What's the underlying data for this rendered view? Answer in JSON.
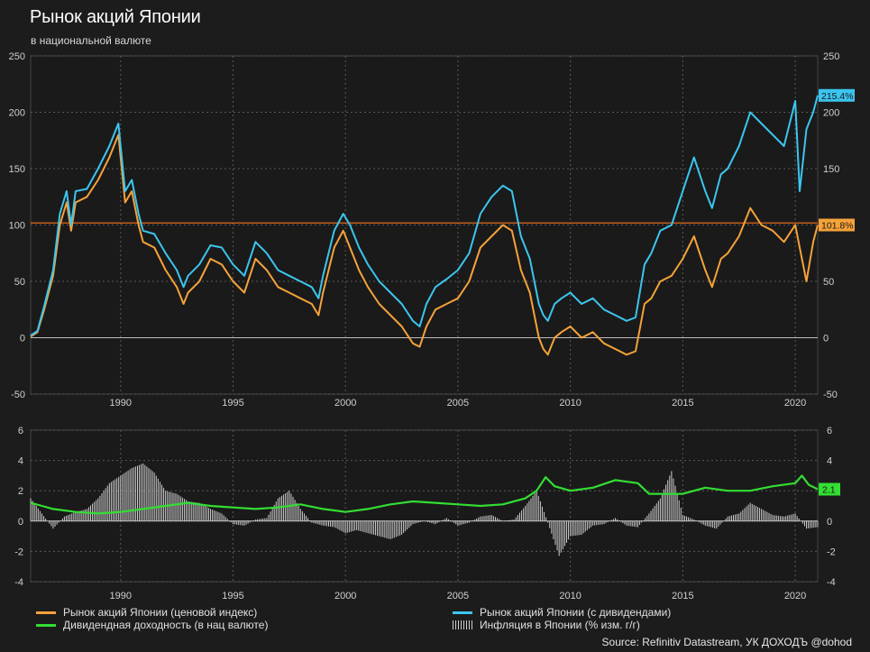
{
  "title": "Рынок акций Японии",
  "subtitle": "в национальной валюте",
  "source": "Source: Refinitiv Datastream, УК ДОХОДЪ @dohod",
  "colors": {
    "background": "#1c1c1c",
    "price": "#f5a23a",
    "total_return": "#3cc5ee",
    "dividend_yield": "#33dd33",
    "inflation": "#d0d0d0",
    "grid": "#5a5a5a",
    "reference_line": "#e06a1a"
  },
  "chart_data": [
    {
      "type": "line",
      "x_ticks": [
        "1990",
        "1995",
        "2000",
        "2005",
        "2010",
        "2015",
        "2020"
      ],
      "y_ticks": [
        "250",
        "200",
        "150",
        "100",
        "50",
        "0",
        "-50"
      ],
      "ylim": [
        -50,
        250
      ],
      "xlim": [
        1986.0,
        2021.0
      ],
      "grid": true,
      "reference_line_y": 101.8,
      "end_labels": {
        "total_return": "215.4%",
        "price": "101.8%"
      },
      "series": [
        {
          "name": "Рынок акций Японии (ценовой индекс)",
          "x": [
            1986.0,
            1986.3,
            1986.6,
            1987.0,
            1987.3,
            1987.6,
            1987.8,
            1988.0,
            1988.5,
            1989.0,
            1989.5,
            1989.9,
            1990.2,
            1990.5,
            1990.8,
            1991.0,
            1991.5,
            1992.0,
            1992.5,
            1992.8,
            1993.0,
            1993.5,
            1994.0,
            1994.5,
            1995.0,
            1995.5,
            1996.0,
            1996.5,
            1997.0,
            1997.5,
            1998.0,
            1998.5,
            1998.8,
            1999.0,
            1999.5,
            1999.9,
            2000.2,
            2000.6,
            2001.0,
            2001.5,
            2002.0,
            2002.5,
            2003.0,
            2003.3,
            2003.6,
            2004.0,
            2004.5,
            2005.0,
            2005.5,
            2006.0,
            2006.5,
            2007.0,
            2007.4,
            2007.8,
            2008.2,
            2008.6,
            2008.8,
            2009.0,
            2009.3,
            2009.6,
            2010.0,
            2010.5,
            2011.0,
            2011.5,
            2012.0,
            2012.5,
            2012.9,
            2013.3,
            2013.6,
            2014.0,
            2014.5,
            2015.0,
            2015.5,
            2016.0,
            2016.3,
            2016.7,
            2017.0,
            2017.5,
            2018.0,
            2018.5,
            2019.0,
            2019.5,
            2020.0,
            2020.2,
            2020.5,
            2020.8,
            2021.0
          ],
          "values": [
            1,
            5,
            25,
            55,
            100,
            120,
            95,
            120,
            125,
            140,
            160,
            180,
            120,
            130,
            100,
            85,
            80,
            60,
            45,
            30,
            40,
            50,
            70,
            65,
            50,
            40,
            70,
            60,
            45,
            40,
            35,
            30,
            20,
            40,
            80,
            95,
            80,
            60,
            45,
            30,
            20,
            10,
            -5,
            -8,
            10,
            25,
            30,
            35,
            50,
            80,
            90,
            100,
            95,
            60,
            40,
            0,
            -10,
            -15,
            0,
            5,
            10,
            0,
            5,
            -5,
            -10,
            -15,
            -12,
            30,
            35,
            50,
            55,
            70,
            90,
            60,
            45,
            70,
            75,
            90,
            115,
            100,
            95,
            85,
            100,
            80,
            50,
            85,
            100
          ]
        },
        {
          "name": "Рынок акций Японии (с дивидендами)",
          "x": [
            1986.0,
            1986.3,
            1986.6,
            1987.0,
            1987.3,
            1987.6,
            1987.8,
            1988.0,
            1988.5,
            1989.0,
            1989.5,
            1989.9,
            1990.2,
            1990.5,
            1990.8,
            1991.0,
            1991.5,
            1992.0,
            1992.5,
            1992.8,
            1993.0,
            1993.5,
            1994.0,
            1994.5,
            1995.0,
            1995.5,
            1996.0,
            1996.5,
            1997.0,
            1997.5,
            1998.0,
            1998.5,
            1998.8,
            1999.0,
            1999.5,
            1999.9,
            2000.2,
            2000.6,
            2001.0,
            2001.5,
            2002.0,
            2002.5,
            2003.0,
            2003.3,
            2003.6,
            2004.0,
            2004.5,
            2005.0,
            2005.5,
            2006.0,
            2006.5,
            2007.0,
            2007.4,
            2007.8,
            2008.2,
            2008.6,
            2008.8,
            2009.0,
            2009.3,
            2009.6,
            2010.0,
            2010.5,
            2011.0,
            2011.5,
            2012.0,
            2012.5,
            2012.9,
            2013.3,
            2013.6,
            2014.0,
            2014.5,
            2015.0,
            2015.5,
            2016.0,
            2016.3,
            2016.7,
            2017.0,
            2017.5,
            2018.0,
            2018.5,
            2019.0,
            2019.5,
            2020.0,
            2020.2,
            2020.5,
            2020.8,
            2021.0
          ],
          "values": [
            2,
            6,
            28,
            60,
            110,
            130,
            100,
            130,
            132,
            150,
            170,
            190,
            130,
            140,
            110,
            95,
            92,
            75,
            60,
            45,
            55,
            65,
            82,
            80,
            65,
            55,
            85,
            75,
            60,
            55,
            50,
            45,
            35,
            55,
            95,
            110,
            100,
            80,
            65,
            50,
            40,
            30,
            15,
            10,
            30,
            45,
            52,
            60,
            75,
            110,
            125,
            135,
            130,
            90,
            70,
            30,
            20,
            15,
            30,
            35,
            40,
            30,
            35,
            25,
            20,
            15,
            18,
            65,
            75,
            95,
            100,
            130,
            160,
            130,
            115,
            145,
            150,
            170,
            200,
            190,
            180,
            170,
            210,
            130,
            185,
            200,
            215
          ]
        }
      ]
    },
    {
      "type": "line",
      "x_ticks": [
        "1990",
        "1995",
        "2000",
        "2005",
        "2010",
        "2015",
        "2020"
      ],
      "y_ticks": [
        "6",
        "4",
        "2",
        "0",
        "-2",
        "-4"
      ],
      "ylim": [
        -4,
        6
      ],
      "grid": true,
      "end_labels": {
        "dividend_yield": "2.1"
      },
      "series": [
        {
          "name": "Дивидендная доходность (в нац валюте)",
          "x": [
            1986.0,
            1986.5,
            1987.0,
            1988.0,
            1989.0,
            1990.0,
            1991.0,
            1992.0,
            1993.0,
            1994.0,
            1995.0,
            1996.0,
            1997.0,
            1998.0,
            1999.0,
            2000.0,
            2001.0,
            2002.0,
            2003.0,
            2004.0,
            2005.0,
            2006.0,
            2007.0,
            2008.0,
            2008.5,
            2008.9,
            2009.3,
            2010.0,
            2011.0,
            2012.0,
            2013.0,
            2013.5,
            2014.0,
            2015.0,
            2016.0,
            2017.0,
            2018.0,
            2019.0,
            2020.0,
            2020.3,
            2020.6,
            2021.0
          ],
          "values": [
            1.2,
            1.0,
            0.8,
            0.6,
            0.5,
            0.6,
            0.8,
            1.0,
            1.2,
            1.0,
            0.9,
            0.8,
            0.9,
            1.1,
            0.8,
            0.6,
            0.8,
            1.1,
            1.3,
            1.2,
            1.1,
            1.0,
            1.1,
            1.5,
            2.0,
            2.9,
            2.3,
            2.0,
            2.2,
            2.7,
            2.5,
            1.8,
            1.8,
            1.8,
            2.2,
            2.0,
            2.0,
            2.3,
            2.5,
            3.0,
            2.4,
            2.1
          ]
        },
        {
          "name": "Инфляция в Японии (% изм. г/г)",
          "x": [
            1986.0,
            1986.5,
            1987.0,
            1987.5,
            1988.0,
            1988.5,
            1989.0,
            1989.5,
            1990.0,
            1990.5,
            1991.0,
            1991.5,
            1992.0,
            1992.5,
            1993.0,
            1993.5,
            1994.0,
            1994.5,
            1995.0,
            1995.5,
            1996.0,
            1996.5,
            1997.0,
            1997.5,
            1998.0,
            1998.5,
            1999.0,
            1999.5,
            2000.0,
            2000.5,
            2001.0,
            2001.5,
            2002.0,
            2002.5,
            2003.0,
            2003.5,
            2004.0,
            2004.5,
            2005.0,
            2005.5,
            2006.0,
            2006.5,
            2007.0,
            2007.5,
            2008.0,
            2008.5,
            2009.0,
            2009.5,
            2010.0,
            2010.5,
            2011.0,
            2011.5,
            2012.0,
            2012.5,
            2013.0,
            2013.5,
            2014.0,
            2014.5,
            2015.0,
            2015.5,
            2016.0,
            2016.5,
            2017.0,
            2017.5,
            2018.0,
            2018.5,
            2019.0,
            2019.5,
            2020.0,
            2020.5,
            2021.0
          ],
          "values": [
            1.5,
            0.5,
            -0.5,
            0.3,
            0.6,
            0.8,
            1.5,
            2.5,
            3.0,
            3.5,
            3.8,
            3.2,
            2.0,
            1.8,
            1.3,
            1.2,
            0.8,
            0.5,
            -0.2,
            -0.3,
            0.1,
            0.2,
            1.5,
            2.0,
            0.8,
            -0.1,
            -0.3,
            -0.4,
            -0.8,
            -0.6,
            -0.8,
            -1.0,
            -1.2,
            -0.9,
            -0.2,
            0.0,
            -0.2,
            0.2,
            -0.3,
            -0.1,
            0.3,
            0.4,
            0.0,
            0.1,
            1.0,
            2.0,
            -0.1,
            -2.3,
            -1.0,
            -0.9,
            -0.3,
            -0.2,
            0.2,
            -0.3,
            -0.4,
            0.5,
            1.5,
            3.3,
            0.4,
            0.1,
            -0.3,
            -0.5,
            0.3,
            0.5,
            1.2,
            0.8,
            0.4,
            0.3,
            0.5,
            -0.5,
            -0.4
          ]
        }
      ]
    }
  ],
  "legend": {
    "price": "Рынок акций Японии (ценовой индекс)",
    "total_return": "Рынок акций Японии (с дивидендами)",
    "dividend_yield": "Дивидендная доходность (в нац валюте)",
    "inflation": "Инфляция в Японии (% изм. г/г)"
  }
}
